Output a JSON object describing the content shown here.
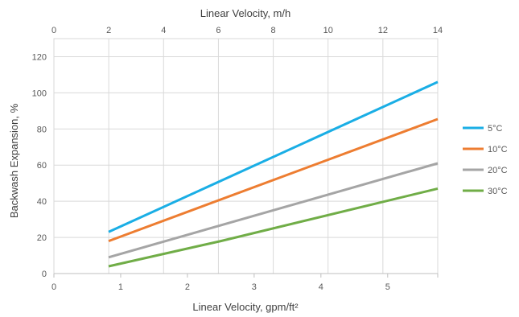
{
  "chart_data": {
    "type": "line",
    "title": "",
    "xlabel": "Linear Velocity, gpm/ft²",
    "x2label": "Linear Velocity, m/h",
    "ylabel": "Backwash Expansion, %",
    "xlim": [
      0,
      5.75
    ],
    "x2lim": [
      0,
      14
    ],
    "ylim": [
      0,
      130
    ],
    "x_ticks": [
      "0",
      "1",
      "2",
      "3",
      "4",
      "5"
    ],
    "x2_ticks": [
      "0",
      "2",
      "4",
      "6",
      "8",
      "10",
      "12",
      "14"
    ],
    "y_ticks": [
      "0",
      "20",
      "40",
      "60",
      "80",
      "100",
      "120"
    ],
    "grid": true,
    "legend_position": "right",
    "series": [
      {
        "name": "5°C",
        "color": "#1aaee5",
        "x": [
          0.82,
          5.75
        ],
        "y": [
          23,
          106
        ]
      },
      {
        "name": "10°C",
        "color": "#ed7d31",
        "x": [
          0.82,
          5.75
        ],
        "y": [
          18,
          85.5
        ]
      },
      {
        "name": "20°C",
        "color": "#a5a5a5",
        "x": [
          0.82,
          5.75
        ],
        "y": [
          9,
          61
        ]
      },
      {
        "name": "30°C",
        "color": "#70ad47",
        "x": [
          0.82,
          2.5,
          5.75
        ],
        "y": [
          4,
          18,
          47
        ]
      }
    ]
  }
}
